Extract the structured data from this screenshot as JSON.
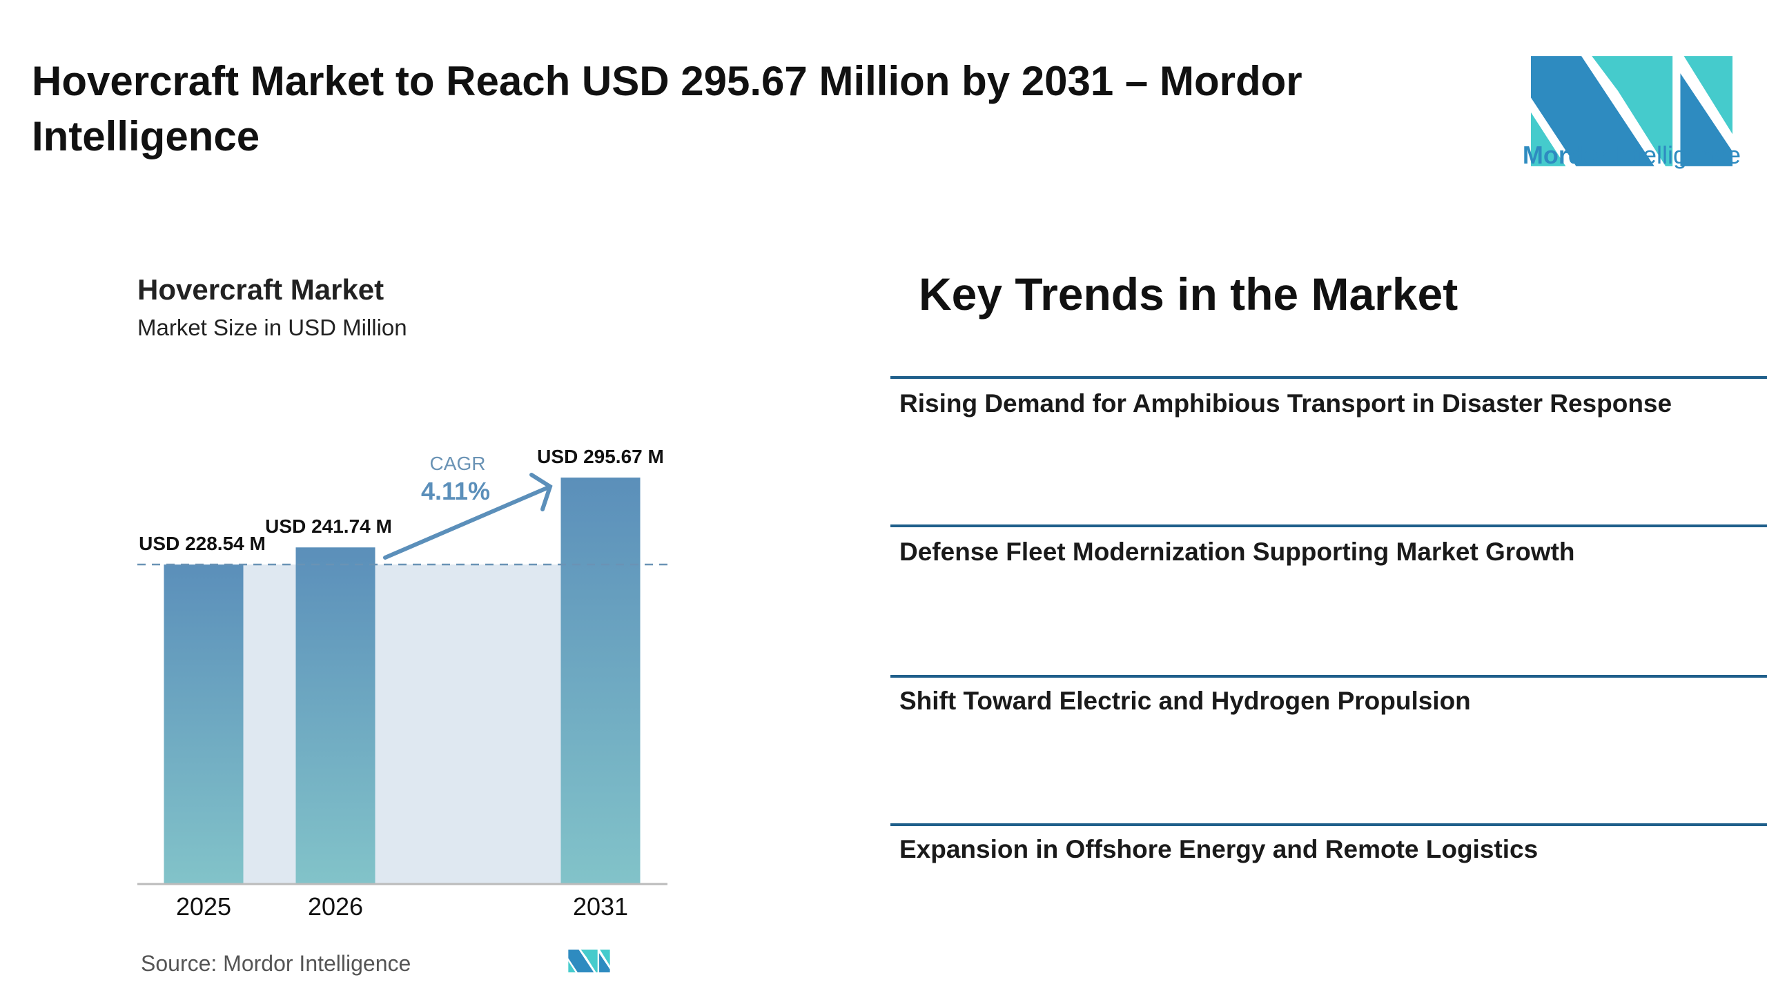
{
  "header": {
    "title": "Hovercraft Market to Reach USD 295.67 Million by 2031 – Mordor Intelligence",
    "logo_text_bold": "Mordor",
    "logo_text_light": "Intelligence"
  },
  "chart_data": {
    "type": "bar",
    "title": "Hovercraft Market",
    "subtitle": "Market Size in USD Million",
    "categories": [
      "2025",
      "2026",
      "2031"
    ],
    "values": [
      228.54,
      241.74,
      295.67
    ],
    "data_labels": [
      "USD 228.54 M",
      "USD 241.74 M",
      "USD 295.67 M"
    ],
    "cagr_label": "CAGR",
    "cagr_value": "4.11%",
    "grid": false,
    "colors": {
      "bar_top": "#5b8fba",
      "bar_bottom": "#82c3c9",
      "band": "#dfe8f1",
      "accent": "#5b8fba"
    }
  },
  "source": "Source:  Mordor Intelligence",
  "trends": {
    "title": "Key Trends in the Market",
    "items": [
      "Rising Demand for Amphibious Transport in Disaster Response",
      "Defense Fleet Modernization Supporting Market Growth",
      "Shift Toward Electric and Hydrogen Propulsion",
      "Expansion in Offshore Energy and Remote Logistics"
    ]
  }
}
